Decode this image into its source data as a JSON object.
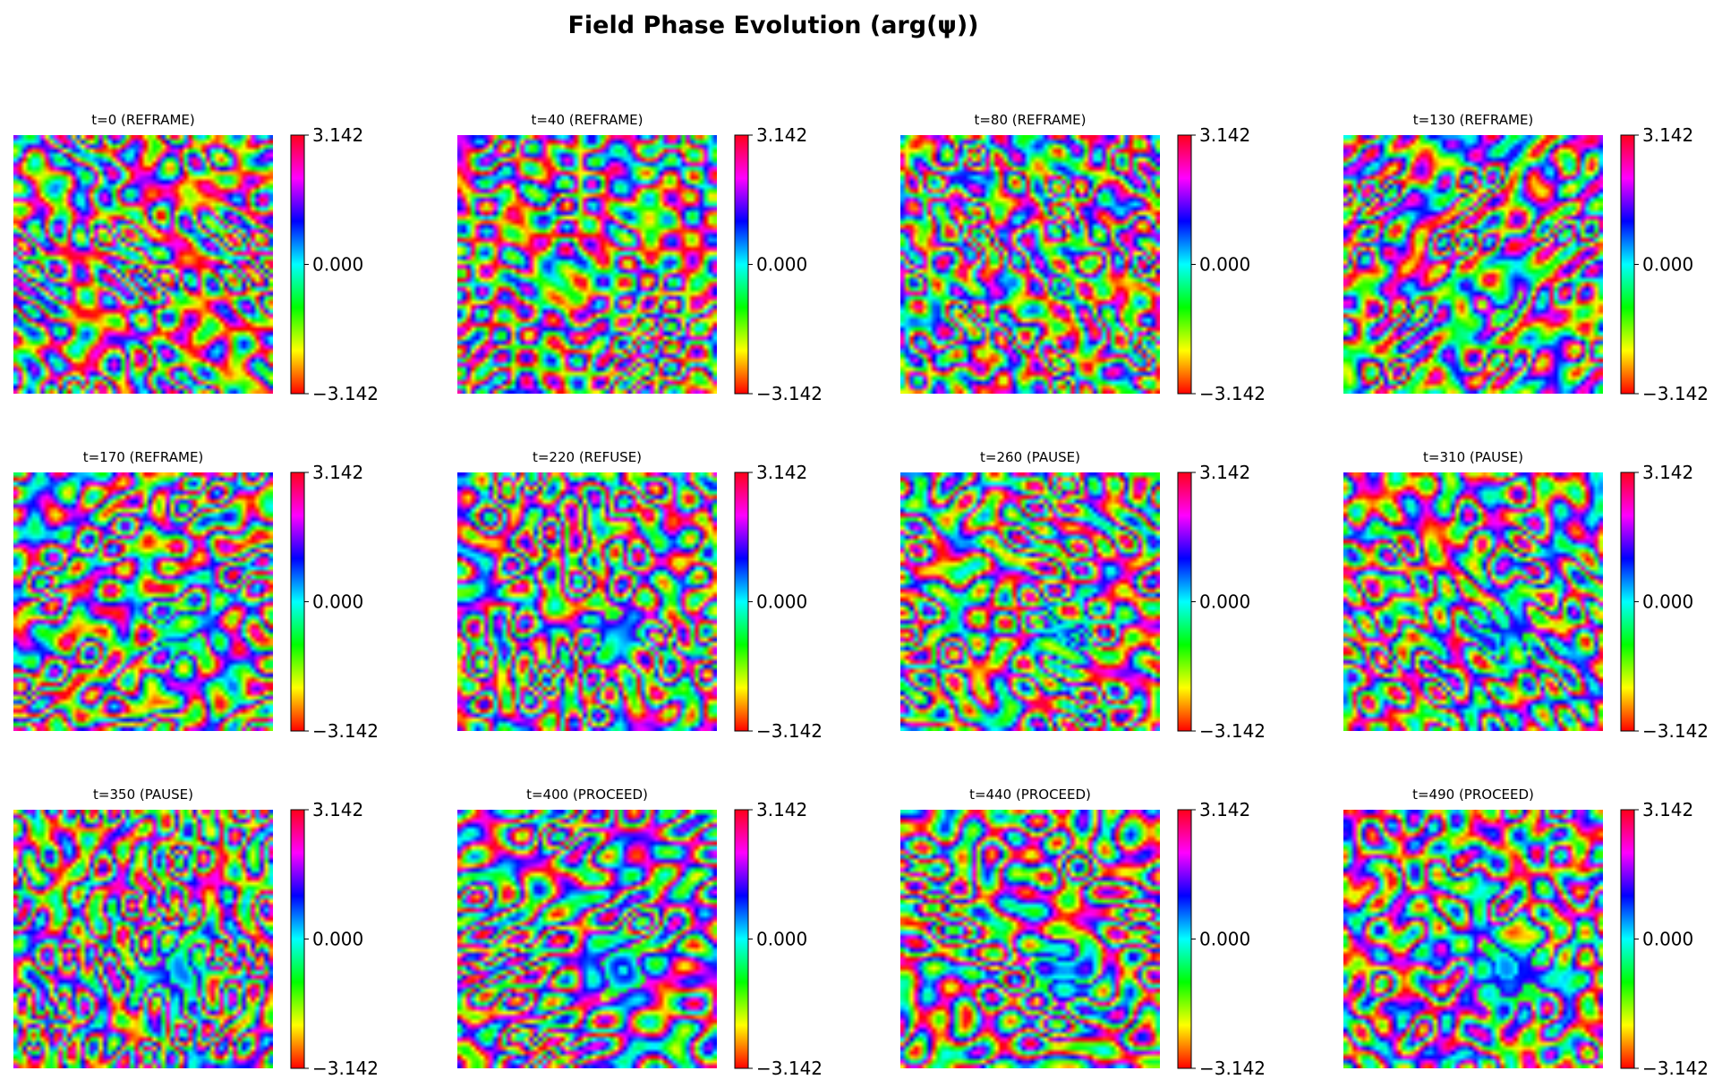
{
  "figure": {
    "title": "Field Phase Evolution (arg(ψ))",
    "rows": 3,
    "cols": 4
  },
  "chart_data": {
    "type": "heatmap",
    "title": "Field Phase Evolution (arg(ψ))",
    "colormap": "hsv",
    "value_range": [
      -3.142,
      3.142
    ],
    "colorbar_ticks": [
      "3.142",
      "0.000",
      "−3.142"
    ],
    "colorbar_tick_values": [
      3.142,
      0.0,
      -3.142
    ],
    "axes_visible": false,
    "panels": [
      {
        "label": "t=0 (REFRAME)",
        "t": 0,
        "state": "REFRAME",
        "blob_strength": 0.05,
        "blob_radius": 0.0,
        "base_hue": 0.0
      },
      {
        "label": "t=40 (REFRAME)",
        "t": 40,
        "state": "REFRAME",
        "blob_strength": 0.15,
        "blob_radius": 0.14,
        "base_hue": 0.1
      },
      {
        "label": "t=80 (REFRAME)",
        "t": 80,
        "state": "REFRAME",
        "blob_strength": 0.45,
        "blob_radius": 0.16,
        "base_hue": 0.25
      },
      {
        "label": "t=130 (REFRAME)",
        "t": 130,
        "state": "REFRAME",
        "blob_strength": 0.6,
        "blob_radius": 0.17,
        "base_hue": 0.45
      },
      {
        "label": "t=170 (REFRAME)",
        "t": 170,
        "state": "REFRAME",
        "blob_strength": 0.8,
        "blob_radius": 0.17,
        "base_hue": 0.65
      },
      {
        "label": "t=220 (REFUSE)",
        "t": 220,
        "state": "REFUSE",
        "blob_strength": 0.85,
        "blob_radius": 0.17,
        "base_hue": 0.75
      },
      {
        "label": "t=260 (PAUSE)",
        "t": 260,
        "state": "PAUSE",
        "blob_strength": 0.88,
        "blob_radius": 0.17,
        "base_hue": 0.8
      },
      {
        "label": "t=310 (PAUSE)",
        "t": 310,
        "state": "PAUSE",
        "blob_strength": 0.9,
        "blob_radius": 0.17,
        "base_hue": 0.85
      },
      {
        "label": "t=350 (PAUSE)",
        "t": 350,
        "state": "PAUSE",
        "blob_strength": 0.9,
        "blob_radius": 0.17,
        "base_hue": 0.88
      },
      {
        "label": "t=400 (PROCEED)",
        "t": 400,
        "state": "PROCEED",
        "blob_strength": 0.92,
        "blob_radius": 0.18,
        "base_hue": 0.9
      },
      {
        "label": "t=440 (PROCEED)",
        "t": 440,
        "state": "PROCEED",
        "blob_strength": 0.92,
        "blob_radius": 0.18,
        "base_hue": 0.92
      },
      {
        "label": "t=490 (PROCEED)",
        "t": 490,
        "state": "PROCEED",
        "blob_strength": 1.0,
        "blob_radius": 0.22,
        "base_hue": 0.95
      }
    ]
  }
}
